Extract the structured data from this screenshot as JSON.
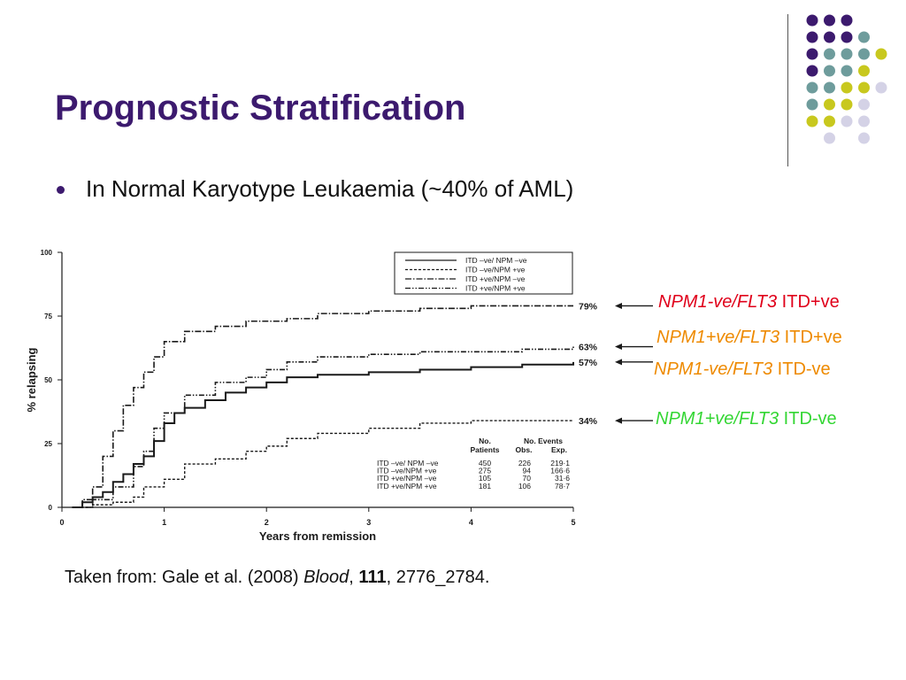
{
  "title": "Prognostic Stratification",
  "bullet": "In Normal Karyotype Leukaemia (~40% of AML)",
  "decoration": {
    "dot_colors": {
      "purple": "#3c1a6e",
      "teal": "#6e9c9c",
      "yellow": "#c8c81e",
      "lavender": "#d4d2e6"
    },
    "rows": [
      [
        "purple",
        "purple",
        "purple",
        null,
        null
      ],
      [
        "purple",
        "purple",
        "purple",
        "teal",
        null
      ],
      [
        "purple",
        "teal",
        "teal",
        "teal",
        "yellow"
      ],
      [
        "purple",
        "teal",
        "teal",
        "yellow",
        null
      ],
      [
        "teal",
        "teal",
        "yellow",
        "yellow",
        "lavender"
      ],
      [
        "teal",
        "yellow",
        "yellow",
        "lavender",
        null
      ],
      [
        "yellow",
        "yellow",
        "lavender",
        "lavender",
        null
      ],
      [
        null,
        "lavender",
        null,
        "lavender",
        null
      ]
    ]
  },
  "chart_data": {
    "type": "line",
    "xlabel": "Years from remission",
    "ylabel": "% relapsing",
    "xlim": [
      0,
      5
    ],
    "ylim": [
      0,
      100
    ],
    "xticks": [
      "0",
      "1",
      "2",
      "3",
      "4",
      "5"
    ],
    "yticks": [
      "0",
      "25",
      "50",
      "75",
      "100"
    ],
    "grid": false,
    "legend_position": "top-right",
    "series": [
      {
        "name": "ITD –ve/ NPM –ve",
        "style": "solid",
        "end_label": "57%",
        "x": [
          0.1,
          0.2,
          0.3,
          0.4,
          0.5,
          0.6,
          0.7,
          0.8,
          0.9,
          1.0,
          1.1,
          1.2,
          1.4,
          1.6,
          1.8,
          2.0,
          2.2,
          2.5,
          3.0,
          3.5,
          4.0,
          4.5,
          5.0
        ],
        "y": [
          0,
          2,
          4,
          6,
          10,
          13,
          17,
          20,
          26,
          33,
          37,
          39,
          42,
          45,
          47,
          49,
          51,
          52,
          53,
          54,
          55,
          56,
          57
        ]
      },
      {
        "name": "ITD –ve/NPM +ve",
        "style": "dashed",
        "end_label": "34%",
        "x": [
          0.1,
          0.3,
          0.5,
          0.7,
          0.8,
          1.0,
          1.2,
          1.5,
          1.8,
          2.0,
          2.2,
          2.5,
          3.0,
          3.5,
          4.0,
          4.5,
          5.0
        ],
        "y": [
          0,
          1,
          2,
          4,
          8,
          11,
          17,
          19,
          22,
          24,
          27,
          29,
          31,
          33,
          34,
          34,
          34
        ]
      },
      {
        "name": "ITD +ve/NPM –ve",
        "style": "dash-dot",
        "end_label": "79%",
        "x": [
          0.1,
          0.2,
          0.3,
          0.4,
          0.5,
          0.6,
          0.7,
          0.8,
          0.9,
          1.0,
          1.2,
          1.5,
          1.8,
          2.2,
          2.5,
          3.0,
          3.5,
          4.0,
          4.5,
          5.0
        ],
        "y": [
          0,
          3,
          8,
          20,
          30,
          40,
          47,
          53,
          59,
          65,
          69,
          71,
          73,
          74,
          76,
          77,
          78,
          79,
          79,
          79
        ]
      },
      {
        "name": "ITD +ve/NPM +ve",
        "style": "dash-dot-dot",
        "end_label": "63%",
        "x": [
          0.1,
          0.3,
          0.5,
          0.7,
          0.8,
          0.9,
          1.0,
          1.2,
          1.5,
          1.8,
          2.0,
          2.2,
          2.5,
          3.0,
          3.5,
          4.0,
          4.5,
          5.0
        ],
        "y": [
          0,
          3,
          8,
          16,
          22,
          31,
          37,
          44,
          49,
          51,
          54,
          57,
          59,
          60,
          61,
          61,
          62,
          63
        ]
      }
    ],
    "table": {
      "header_top": [
        "No.",
        "No. Events"
      ],
      "header_bottom": [
        "Patients",
        "Obs.",
        "Exp."
      ],
      "rows": [
        {
          "label": "ITD –ve/ NPM –ve",
          "patients": "450",
          "obs": "226",
          "exp": "219·1"
        },
        {
          "label": "ITD –ve/NPM +ve",
          "patients": "275",
          "obs": "94",
          "exp": "166·6"
        },
        {
          "label": "ITD +ve/NPM –ve",
          "patients": "105",
          "obs": "70",
          "exp": "31·6"
        },
        {
          "label": "ITD +ve/NPM +ve",
          "patients": "181",
          "obs": "106",
          "exp": "78·7"
        }
      ]
    }
  },
  "callouts": [
    {
      "italic": "NPM1-ve/FLT3",
      "plain": " ITD+ve",
      "color": "#e0001a"
    },
    {
      "italic": "NPM1+ve/FLT3",
      "plain": " ITD+ve",
      "color": "#ee8a00"
    },
    {
      "italic": "NPM1-ve/FLT3",
      "plain": " ITD-ve",
      "color": "#ee8a00"
    },
    {
      "italic": "NPM1+ve/FLT3",
      "plain": " ITD-ve",
      "color": "#33d633"
    }
  ],
  "citation": {
    "pre": "Taken from: Gale et al. (2008) ",
    "journal": "Blood",
    "sep1": ", ",
    "volume": "111",
    "post": ", 2776_2784."
  }
}
